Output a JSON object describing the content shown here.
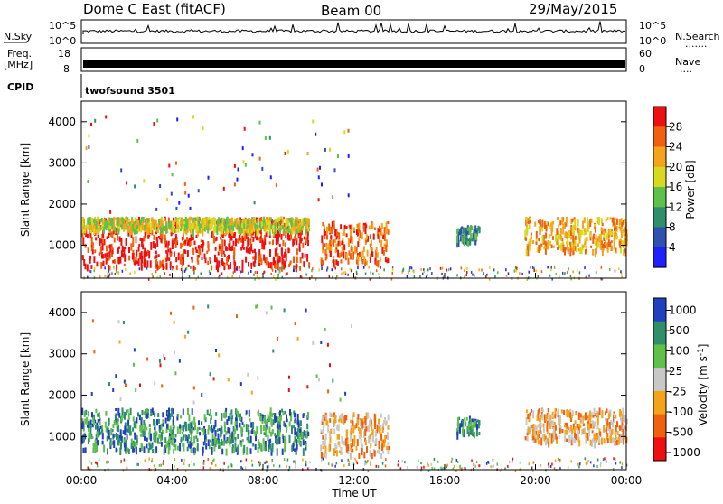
{
  "header": {
    "title": "Dome C East (fitACF)",
    "beam": "Beam 00",
    "date": "29/May/2015"
  },
  "top_panel": {
    "left_label": "N.Sky",
    "right_label": "N.Search",
    "right_dots": ".......",
    "left_ticks": [
      "10^5",
      "10^0"
    ],
    "right_ticks": [
      "10^5",
      "10^0"
    ]
  },
  "freq_panel": {
    "left_label_1": "Freq.",
    "left_label_2": "[MHz]",
    "left_ticks": [
      "18",
      "8"
    ],
    "right_label": "Nave",
    "right_dots": "....",
    "right_ticks": [
      "60",
      "0"
    ]
  },
  "cpid": {
    "label": "CPID",
    "value": "twofsound 3501"
  },
  "chart_data": [
    {
      "type": "heatmap",
      "name": "power",
      "ylabel": "Slant Range [km]",
      "xlabel": "Time UT",
      "ylim": [
        200,
        4500
      ],
      "yticks": [
        "1000",
        "2000",
        "3000",
        "4000"
      ],
      "xticks": [
        "00:00",
        "04:00",
        "08:00",
        "12:00",
        "16:00",
        "20:00",
        "00:00"
      ],
      "colorbar": {
        "label": "Power [dB]",
        "ticks": [
          "4",
          "8",
          "12",
          "16",
          "20",
          "24",
          "28"
        ],
        "colors": [
          "#1f1fff",
          "#3050b0",
          "#2f8f6a",
          "#5fc04a",
          "#d8d820",
          "#f4a41a",
          "#f06010",
          "#ee1010"
        ]
      },
      "regions": [
        {
          "t0": 0.0,
          "t1": 10.0,
          "r0": 500,
          "r1": 1700,
          "color_index": 7
        },
        {
          "t0": 0.0,
          "t1": 10.0,
          "r0": 1400,
          "r1": 1700,
          "color_index": 4
        },
        {
          "t0": 10.5,
          "t1": 13.5,
          "r0": 600,
          "r1": 1600,
          "color_index": 6
        },
        {
          "t0": 16.5,
          "t1": 17.5,
          "r0": 1100,
          "r1": 1500,
          "color_index": 2
        },
        {
          "t0": 19.5,
          "t1": 24.0,
          "r0": 900,
          "r1": 1700,
          "color_index": 5
        }
      ]
    },
    {
      "type": "heatmap",
      "name": "velocity",
      "ylabel": "Slant Range [km]",
      "xlabel": "Time UT",
      "ylim": [
        200,
        4500
      ],
      "yticks": [
        "1000",
        "2000",
        "3000",
        "4000"
      ],
      "xticks": [
        "00:00",
        "04:00",
        "08:00",
        "12:00",
        "16:00",
        "20:00",
        "00:00"
      ],
      "colorbar": {
        "label": "Velocity [m s^-1]",
        "ticks": [
          "1000",
          "500",
          "100",
          "25",
          "-25",
          "-100",
          "-500",
          "-1000"
        ],
        "colors": [
          "#2040c0",
          "#2f8f6a",
          "#5fc04a",
          "#c8c8c8",
          "#f4a41a",
          "#f06010",
          "#ee1010"
        ]
      },
      "regions": [
        {
          "t0": 0.0,
          "t1": 10.0,
          "r0": 700,
          "r1": 1700,
          "color_index": 1
        },
        {
          "t0": 10.5,
          "t1": 13.5,
          "r0": 600,
          "r1": 1600,
          "color_index": 4
        },
        {
          "t0": 16.5,
          "t1": 17.5,
          "r0": 1100,
          "r1": 1500,
          "color_index": 1
        },
        {
          "t0": 19.5,
          "t1": 24.0,
          "r0": 900,
          "r1": 1700,
          "color_index": 4
        }
      ]
    }
  ]
}
